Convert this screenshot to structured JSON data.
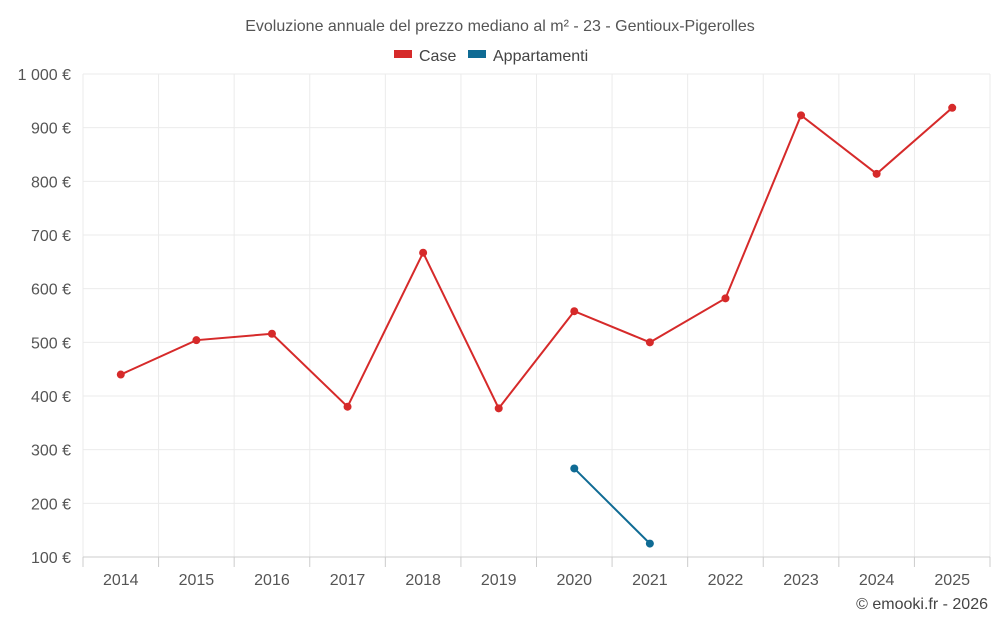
{
  "chart_data": {
    "type": "line",
    "title": "Evoluzione annuale del prezzo mediano al m² - 23 - Gentioux-Pigerolles",
    "x": [
      2014,
      2015,
      2016,
      2017,
      2018,
      2019,
      2020,
      2021,
      2022,
      2023,
      2024,
      2025
    ],
    "y_tick_labels": [
      "100 €",
      "200 €",
      "300 €",
      "400 €",
      "500 €",
      "600 €",
      "700 €",
      "800 €",
      "900 €",
      "1 000 €"
    ],
    "y_ticks": [
      100,
      200,
      300,
      400,
      500,
      600,
      700,
      800,
      900,
      1000
    ],
    "ylim": [
      100,
      1000
    ],
    "grid": true,
    "legend_position": "top-center",
    "series": [
      {
        "name": "Case",
        "color": "#d62a2a",
        "values": [
          440,
          504,
          516,
          380,
          667,
          377,
          558,
          500,
          582,
          923,
          814,
          937
        ]
      },
      {
        "name": "Appartamenti",
        "color": "#0f6b94",
        "values": [
          null,
          null,
          null,
          null,
          null,
          null,
          265,
          125,
          null,
          null,
          null,
          null
        ]
      }
    ]
  },
  "credit": "© emooki.fr - 2026"
}
